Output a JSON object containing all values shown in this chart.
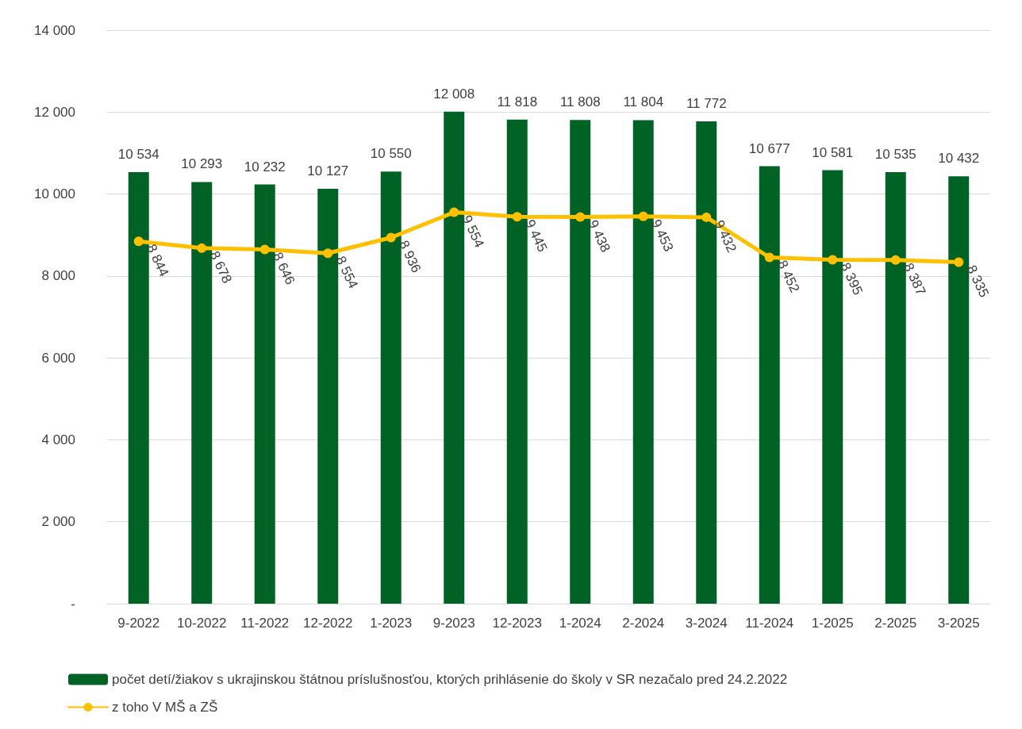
{
  "chart_data": {
    "type": "bar",
    "categories": [
      "9-2022",
      "10-2022",
      "11-2022",
      "12-2022",
      "1-2023",
      "9-2023",
      "12-2023",
      "1-2024",
      "2-2024",
      "3-2024",
      "11-2024",
      "1-2025",
      "2-2025",
      "3-2025"
    ],
    "series": [
      {
        "name": "počet detí/žiakov s ukrajinskou štátnou príslušnosťou, ktorých prihlásenie do školy v SR nezačalo pred 24.2.2022",
        "color": "#006325",
        "values": [
          10534,
          10293,
          10232,
          10127,
          10550,
          12008,
          11818,
          11808,
          11804,
          11772,
          10677,
          10581,
          10535,
          10432
        ]
      },
      {
        "name": "z toho V MŠ a ZŠ",
        "type": "line",
        "color": "#ffc000",
        "values": [
          8844,
          8678,
          8646,
          8554,
          8936,
          9554,
          9445,
          9438,
          9453,
          9432,
          8452,
          8395,
          8387,
          8335
        ]
      }
    ],
    "ylim": [
      0,
      14000
    ],
    "yticks": [
      {
        "value": 0,
        "label": "-"
      },
      {
        "value": 2000,
        "label": "2 000"
      },
      {
        "value": 4000,
        "label": "4 000"
      },
      {
        "value": 6000,
        "label": "6 000"
      },
      {
        "value": 8000,
        "label": "8 000"
      },
      {
        "value": 10000,
        "label": "10 000"
      },
      {
        "value": 12000,
        "label": "12 000"
      },
      {
        "value": 14000,
        "label": "14 000"
      }
    ],
    "grid": "y",
    "legend": "bottom left",
    "marker": "circle",
    "line_style": "solid",
    "data_labels": true
  }
}
